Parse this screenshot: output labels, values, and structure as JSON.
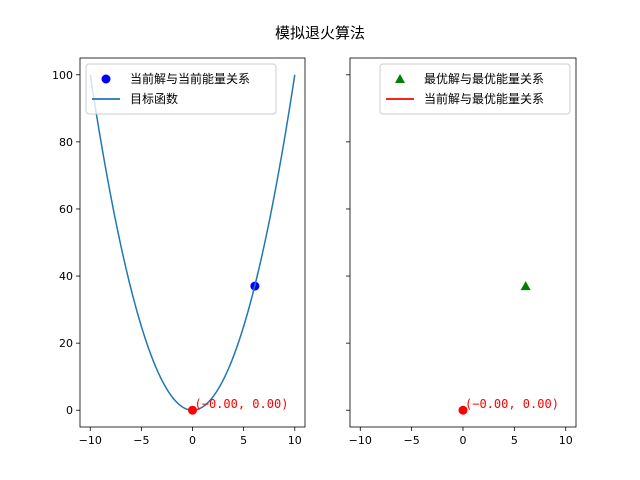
{
  "figure": {
    "suptitle": "模拟退火算法"
  },
  "chart_data": [
    {
      "type": "scatter",
      "xlim": [
        -11,
        11
      ],
      "ylim": [
        -5,
        105
      ],
      "xticks": [
        -10,
        -5,
        0,
        5,
        10
      ],
      "yticks": [
        0,
        20,
        40,
        60,
        80,
        100
      ],
      "ytick_labels_visible": true,
      "grid": false,
      "legend": {
        "placement": "upper-left"
      },
      "series": [
        {
          "name": "当前解与当前能量关系",
          "kind": "scatter",
          "marker": "circle",
          "color": "#0000ff",
          "points": [
            {
              "x": 6.1,
              "y": 37
            }
          ]
        },
        {
          "name": "目标函数",
          "kind": "line",
          "color": "#1f77b4",
          "function": "x^2",
          "x_range": [
            -10,
            10
          ]
        },
        {
          "name": "",
          "kind": "scatter",
          "marker": "circle",
          "color": "#ff0000",
          "points": [
            {
              "x": 0,
              "y": 0
            }
          ],
          "in_legend": false
        }
      ],
      "annotations": [
        {
          "text": "(-0.00, 0.00)",
          "x": 0,
          "y": 0,
          "color": "#ff0000"
        }
      ]
    },
    {
      "type": "scatter",
      "xlim": [
        -11,
        11
      ],
      "ylim": [
        -5,
        105
      ],
      "xticks": [
        -10,
        -5,
        0,
        5,
        10
      ],
      "yticks": [
        0,
        20,
        40,
        60,
        80,
        100
      ],
      "ytick_labels_visible": false,
      "grid": false,
      "legend": {
        "placement": "upper-right"
      },
      "series": [
        {
          "name": "最优解与最优能量关系",
          "kind": "scatter",
          "marker": "triangle",
          "color": "#008000",
          "points": [
            {
              "x": 6.1,
              "y": 37
            }
          ]
        },
        {
          "name": "当前解与最优能量关系",
          "kind": "line",
          "color": "#ff0000",
          "points": []
        },
        {
          "name": "",
          "kind": "scatter",
          "marker": "circle",
          "color": "#ff0000",
          "points": [
            {
              "x": 0,
              "y": 0
            }
          ],
          "in_legend": false
        }
      ],
      "annotations": [
        {
          "text": "(-0.00, 0.00)",
          "x": 0,
          "y": 0,
          "color": "#ff0000"
        }
      ]
    }
  ]
}
